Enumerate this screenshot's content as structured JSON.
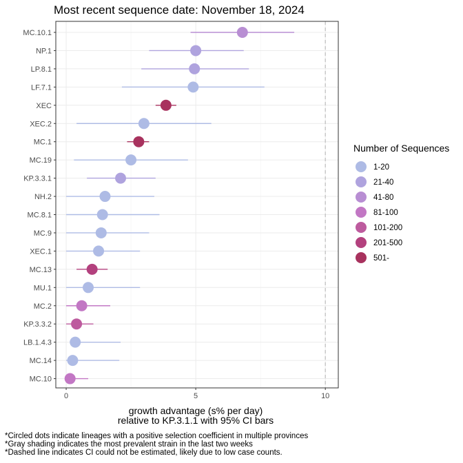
{
  "chart_data": {
    "type": "scatter",
    "title": "Most recent sequence date: November 18, 2024",
    "xlabel_line1": "growth advantage (s% per day)",
    "xlabel_line2": "relative to  KP.3.1.1  with 95% CI bars",
    "xlim": [
      -0.4,
      10.5
    ],
    "xticks": [
      0,
      5,
      10
    ],
    "dashed_x": 10,
    "grid": true,
    "legend_position": "right",
    "legend_title": "Number of Sequences",
    "legend": [
      {
        "label": "1-20",
        "color": "#aebbe5"
      },
      {
        "label": "21-40",
        "color": "#afa3de"
      },
      {
        "label": "41-80",
        "color": "#b88ed3"
      },
      {
        "label": "81-100",
        "color": "#c277c4"
      },
      {
        "label": "101-200",
        "color": "#bd5b9e"
      },
      {
        "label": "201-500",
        "color": "#b3417e"
      },
      {
        "label": "501-",
        "color": "#a8325e"
      }
    ],
    "points": [
      {
        "lineage": "MC.10.1",
        "value": 6.8,
        "lo": 4.8,
        "hi": 8.8,
        "group": 2
      },
      {
        "lineage": "NP.1",
        "value": 5.0,
        "lo": 3.2,
        "hi": 6.85,
        "group": 1
      },
      {
        "lineage": "LP.8.1",
        "value": 4.95,
        "lo": 2.9,
        "hi": 7.05,
        "group": 1
      },
      {
        "lineage": "LF.7.1",
        "value": 4.9,
        "lo": 2.15,
        "hi": 7.65,
        "group": 0
      },
      {
        "lineage": "XEC",
        "value": 3.85,
        "lo": 3.45,
        "hi": 4.25,
        "group": 6
      },
      {
        "lineage": "XEC.2",
        "value": 3.0,
        "lo": 0.4,
        "hi": 5.6,
        "group": 0
      },
      {
        "lineage": "MC.1",
        "value": 2.8,
        "lo": 2.35,
        "hi": 3.2,
        "group": 6
      },
      {
        "lineage": "MC.19",
        "value": 2.5,
        "lo": 0.3,
        "hi": 4.7,
        "group": 0
      },
      {
        "lineage": "KP.3.3.1",
        "value": 2.1,
        "lo": 0.8,
        "hi": 3.45,
        "group": 1
      },
      {
        "lineage": "NH.2",
        "value": 1.5,
        "lo": 0.0,
        "hi": 3.4,
        "group": 0
      },
      {
        "lineage": "MC.8.1",
        "value": 1.4,
        "lo": 0.0,
        "hi": 3.6,
        "group": 0
      },
      {
        "lineage": "MC.9",
        "value": 1.35,
        "lo": 0.0,
        "hi": 3.2,
        "group": 0
      },
      {
        "lineage": "XEC.1",
        "value": 1.25,
        "lo": 0.0,
        "hi": 2.85,
        "group": 0
      },
      {
        "lineage": "MC.13",
        "value": 1.0,
        "lo": 0.4,
        "hi": 1.6,
        "group": 5
      },
      {
        "lineage": "MU.1",
        "value": 0.85,
        "lo": 0.0,
        "hi": 2.85,
        "group": 0
      },
      {
        "lineage": "MC.2",
        "value": 0.6,
        "lo": 0.0,
        "hi": 1.7,
        "group": 3
      },
      {
        "lineage": "KP.3.3.2",
        "value": 0.4,
        "lo": 0.0,
        "hi": 1.05,
        "group": 4
      },
      {
        "lineage": "LB.1.4.3",
        "value": 0.35,
        "lo": 0.15,
        "hi": 2.1,
        "group": 0
      },
      {
        "lineage": "MC.14",
        "value": 0.25,
        "lo": 0.0,
        "hi": 2.05,
        "group": 0
      },
      {
        "lineage": "MC.10",
        "value": 0.15,
        "lo": 0.0,
        "hi": 0.85,
        "group": 3
      }
    ]
  },
  "footnotes": [
    "*Circled dots indicate lineages with a positive selection coefficient in multiple provinces",
    "*Gray shading indicates the most prevalent strain in the last two weeks",
    "*Dashed line indicates CI could not be estimated, likely due to low case counts."
  ]
}
